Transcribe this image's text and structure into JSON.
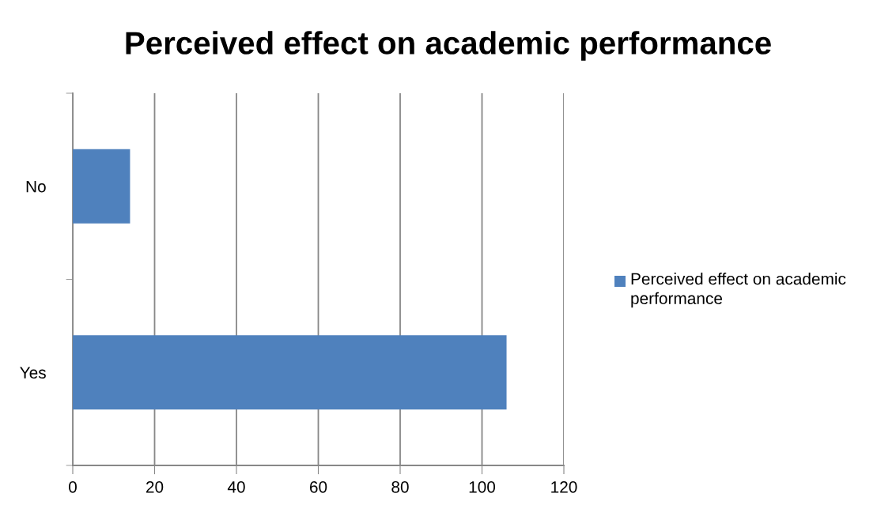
{
  "chart_data": {
    "type": "bar",
    "orientation": "horizontal",
    "title": "Perceived effect on academic performance",
    "categories": [
      "No",
      "Yes"
    ],
    "series": [
      {
        "name": "Perceived effect on academic performance",
        "color": "#4f81bd",
        "values": [
          14,
          106
        ]
      }
    ],
    "xlim": [
      0,
      120
    ],
    "xticks": [
      0,
      20,
      40,
      60,
      80,
      100,
      120
    ],
    "grid": "x",
    "legend": "right"
  }
}
